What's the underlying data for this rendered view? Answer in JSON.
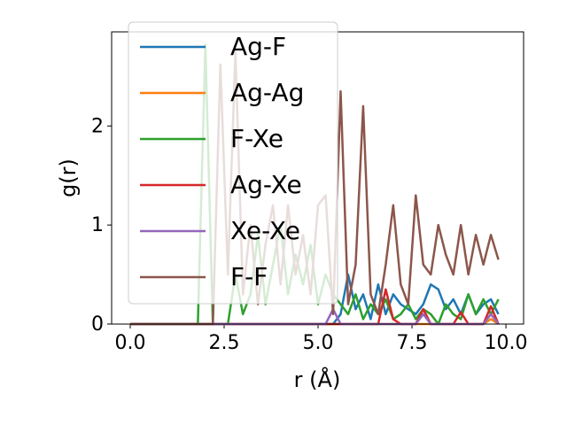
{
  "chart_data": {
    "type": "line",
    "xlabel": "r (Å)",
    "ylabel": "g(r)",
    "xlim": [
      -0.495,
      10.47
    ],
    "ylim": [
      0,
      2.95
    ],
    "xticks": [
      {
        "value": 0,
        "label": "0.0"
      },
      2.5,
      {
        "value": 5,
        "label": "5.0"
      },
      7.5,
      {
        "value": 10,
        "label": "10.0"
      }
    ],
    "yticks": [
      0,
      1,
      2
    ],
    "legend": "upper left",
    "x": [
      0,
      0.2,
      0.4,
      0.6,
      0.8,
      1,
      1.2,
      1.4,
      1.6,
      1.8,
      2,
      2.2,
      2.4,
      2.6,
      2.8,
      3,
      3.2,
      3.4,
      3.6,
      3.8,
      4,
      4.2,
      4.4,
      4.6,
      4.8,
      5,
      5.2,
      5.4,
      5.6,
      5.8,
      6,
      6.2,
      6.4,
      6.6,
      6.8,
      7,
      7.2,
      7.4,
      7.6,
      7.8,
      8,
      8.2,
      8.4,
      8.6,
      8.8,
      9,
      9.2,
      9.4,
      9.6,
      9.8
    ],
    "series": [
      {
        "name": "Ag-F",
        "color": "#1f77b4",
        "values": [
          0,
          0,
          0,
          0,
          0,
          0,
          0,
          0,
          0,
          0,
          0,
          0,
          0,
          0,
          0,
          0,
          0,
          0,
          0,
          0,
          0,
          0,
          0,
          0,
          0,
          0,
          0,
          0,
          0.1,
          0.5,
          0.15,
          0.3,
          0.05,
          0.4,
          0.1,
          0.3,
          0.2,
          0.15,
          0.1,
          0.2,
          0.4,
          0.35,
          0.15,
          0.25,
          0.1,
          0.3,
          0.1,
          0.2,
          0.25,
          0.1
        ]
      },
      {
        "name": "Ag-Ag",
        "color": "#ff7f0e",
        "values": [
          0,
          0,
          0,
          0,
          0,
          0,
          0,
          0,
          0,
          0,
          0,
          0,
          0,
          0,
          0,
          0,
          0,
          0,
          0,
          0,
          0,
          0,
          0,
          0,
          0,
          0,
          0,
          0,
          0,
          0,
          0,
          0,
          0,
          0,
          0,
          0,
          0,
          0,
          0,
          0,
          0,
          0,
          0,
          0,
          0,
          0,
          0,
          0,
          0.05,
          0
        ]
      },
      {
        "name": "F-Xe",
        "color": "#2ca02c",
        "values": [
          0,
          0,
          0,
          0,
          0,
          0,
          0,
          0,
          0,
          0,
          2.82,
          0,
          0,
          0,
          0.5,
          0.1,
          0.3,
          0.9,
          0.2,
          0.6,
          1.0,
          0.3,
          0.7,
          0.4,
          0.8,
          0.2,
          0.5,
          0.3,
          0.2,
          0.1,
          0.3,
          0.05,
          0.2,
          0.1,
          0.25,
          0.05,
          0.1,
          0.2,
          0.05,
          0.15,
          0.1,
          0,
          0.2,
          0.1,
          0.05,
          0.3,
          0.1,
          0.25,
          0.1,
          0.25
        ]
      },
      {
        "name": "Ag-Xe",
        "color": "#d62728",
        "values": [
          0,
          0,
          0,
          0,
          0,
          0,
          0,
          0,
          0,
          0,
          0,
          0,
          0,
          0,
          0,
          0,
          0,
          0,
          0,
          0,
          0,
          0,
          0,
          0,
          0,
          0,
          0,
          0,
          0,
          0,
          0,
          0,
          0,
          0,
          0.35,
          0.05,
          0,
          0,
          0,
          0.15,
          0,
          0,
          0,
          0,
          0.12,
          0,
          0,
          0,
          0.18,
          0
        ]
      },
      {
        "name": "Xe-Xe",
        "color": "#9467bd",
        "values": [
          0,
          0,
          0,
          0,
          0,
          0,
          0,
          0,
          0,
          0,
          0,
          0,
          0,
          0,
          0,
          0,
          0,
          0,
          0,
          0,
          0,
          0,
          0,
          0,
          0,
          0,
          0,
          0.15,
          0,
          0,
          0,
          0,
          0,
          0,
          0,
          0,
          0,
          0,
          0,
          0.1,
          0,
          0,
          0,
          0,
          0,
          0,
          0,
          0,
          0.1,
          0
        ]
      },
      {
        "name": "F-F",
        "color": "#8c564b",
        "values": [
          0,
          0,
          0,
          0,
          0,
          0,
          0,
          0,
          0,
          0,
          0,
          0,
          2.62,
          0.5,
          2.75,
          0.3,
          1.0,
          0.2,
          0.8,
          1.2,
          0.4,
          1.2,
          0.5,
          0.9,
          0.3,
          1.2,
          1.3,
          0.1,
          2.35,
          0.2,
          0.6,
          2.2,
          0.3,
          0.1,
          0.6,
          1.2,
          0.4,
          0.2,
          1.3,
          0.6,
          0.5,
          1.0,
          0.7,
          0.5,
          1.0,
          0.5,
          0.9,
          0.6,
          0.9,
          0.65
        ]
      }
    ]
  }
}
